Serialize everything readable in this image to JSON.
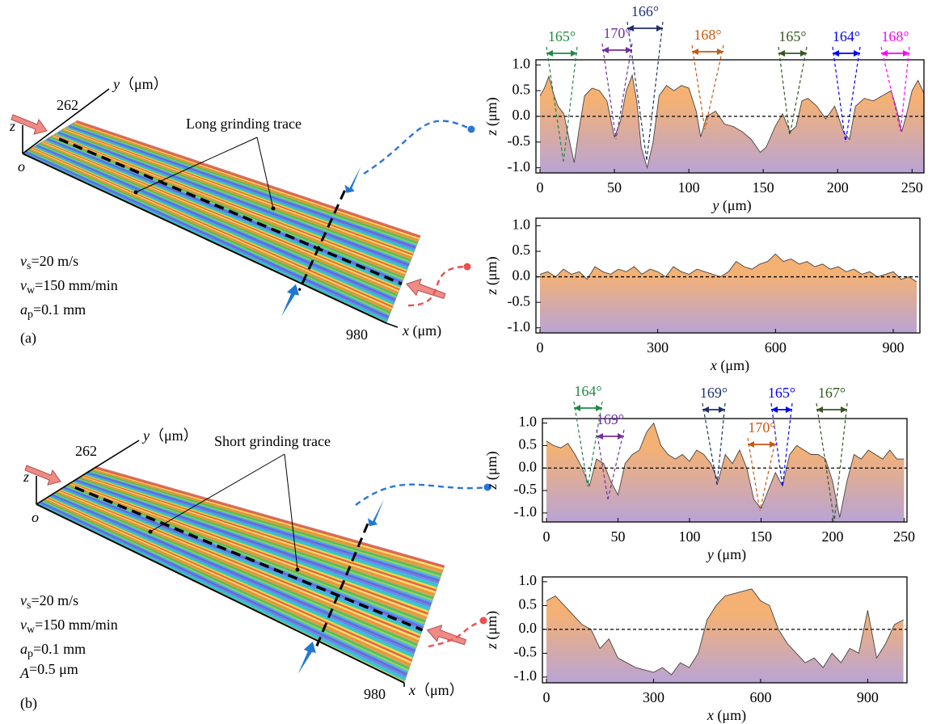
{
  "chart_data": [
    {
      "type": "area",
      "xlabel": {
        "var": "y",
        "unit": " (μm)"
      },
      "ylabel": {
        "var": "z",
        "unit": " (μm)"
      },
      "x": [
        0,
        3,
        6,
        9,
        12,
        16,
        20,
        23,
        26,
        30,
        35,
        40,
        45,
        50,
        54,
        58,
        62,
        65,
        68,
        72,
        76,
        80,
        85,
        90,
        95,
        100,
        105,
        108,
        112,
        118,
        124,
        130,
        136,
        142,
        148,
        152,
        158,
        163,
        168,
        172,
        176,
        180,
        186,
        192,
        198,
        204,
        208,
        212,
        218,
        224,
        230,
        236,
        240,
        243,
        246,
        250,
        254,
        258
      ],
      "values": [
        0.4,
        0.55,
        0.78,
        0.45,
        0.2,
        0.05,
        -0.5,
        -0.9,
        -0.3,
        0.4,
        0.55,
        0.5,
        0.3,
        -0.4,
        -0.1,
        0.5,
        0.8,
        0.3,
        -0.6,
        -1.0,
        -0.5,
        0.4,
        0.6,
        0.5,
        0.6,
        0.55,
        0.1,
        -0.4,
        0.0,
        0.1,
        -0.15,
        -0.2,
        -0.3,
        -0.45,
        -0.7,
        -0.6,
        -0.2,
        0.05,
        -0.3,
        -0.2,
        0.3,
        0.35,
        0.2,
        -0.05,
        0.2,
        -0.3,
        -0.45,
        0.2,
        0.35,
        0.3,
        0.4,
        0.5,
        0.1,
        -0.3,
        0.0,
        0.5,
        0.7,
        0.45
      ],
      "xlim": [
        0,
        258
      ],
      "xticks": [
        0,
        50,
        100,
        150,
        200,
        250
      ],
      "ylim": [
        -1.1,
        1.1
      ],
      "yticks": [
        {
          "value": -1,
          "label": "-1.0"
        },
        {
          "value": -0.5,
          "label": "-0.5"
        },
        {
          "value": 0,
          "label": "0.0"
        },
        {
          "value": 0.5,
          "label": "0.5"
        },
        {
          "value": 1,
          "label": "1.0"
        }
      ],
      "hline": 0,
      "line_color": "#444444",
      "fill_colors": [
        "#f4b173",
        "#b9a4d6"
      ],
      "annotations": [
        {
          "text": "165°",
          "color": "#1e8a46"
        },
        {
          "text": "170°",
          "color": "#7030a0"
        },
        {
          "text": "166°",
          "color": "#1f2f6e"
        },
        {
          "text": "168°",
          "color": "#c55a11"
        },
        {
          "text": "165°",
          "color": "#375623"
        },
        {
          "text": "164°",
          "color": "#0000ff"
        },
        {
          "text": "168°",
          "color": "#ff00ff"
        }
      ]
    },
    {
      "type": "area",
      "xlabel": {
        "var": "x",
        "unit": " (μm)"
      },
      "ylabel": {
        "var": "z",
        "unit": " (μm)"
      },
      "x": [
        0,
        20,
        40,
        60,
        80,
        100,
        120,
        140,
        160,
        180,
        200,
        220,
        240,
        260,
        280,
        300,
        320,
        340,
        360,
        380,
        400,
        420,
        440,
        460,
        480,
        500,
        520,
        540,
        560,
        580,
        600,
        620,
        640,
        660,
        680,
        700,
        720,
        740,
        760,
        780,
        800,
        820,
        840,
        860,
        880,
        900,
        920,
        940,
        960
      ],
      "values": [
        0.05,
        0.1,
        0.0,
        0.15,
        0.05,
        0.1,
        -0.05,
        0.2,
        0.1,
        0.05,
        0.15,
        0.1,
        0.2,
        0.05,
        0.15,
        0.1,
        0.0,
        0.2,
        0.1,
        0.05,
        0.15,
        0.1,
        0.05,
        0.0,
        0.1,
        0.3,
        0.2,
        0.15,
        0.25,
        0.3,
        0.45,
        0.3,
        0.35,
        0.25,
        0.3,
        0.2,
        0.25,
        0.15,
        0.2,
        0.1,
        0.15,
        0.05,
        0.1,
        0.0,
        0.05,
        0.1,
        -0.05,
        0.0,
        -0.1
      ],
      "xlim": [
        0,
        968
      ],
      "xticks": [
        0,
        300,
        600,
        900
      ],
      "ylim": [
        -1.1,
        1.15
      ],
      "yticks": [
        {
          "value": -1,
          "label": "-1.0"
        },
        {
          "value": -0.5,
          "label": "-0.5"
        },
        {
          "value": 0,
          "label": "0.0"
        },
        {
          "value": 0.5,
          "label": "0.5"
        },
        {
          "value": 1,
          "label": "1.0"
        }
      ],
      "hline": 0,
      "line_color": "#444444",
      "fill_colors": [
        "#f4b173",
        "#b9a4d6"
      ],
      "annotations": []
    },
    {
      "type": "area",
      "xlabel": {
        "var": "y",
        "unit": " (μm)"
      },
      "ylabel": {
        "var": "z",
        "unit": " (μm)"
      },
      "x": [
        0,
        5,
        10,
        15,
        20,
        25,
        30,
        35,
        40,
        45,
        50,
        55,
        60,
        65,
        70,
        75,
        80,
        85,
        90,
        95,
        100,
        105,
        110,
        115,
        120,
        125,
        130,
        135,
        140,
        145,
        150,
        155,
        160,
        165,
        170,
        175,
        180,
        185,
        190,
        195,
        200,
        205,
        210,
        215,
        220,
        225,
        230,
        235,
        240,
        245,
        250
      ],
      "values": [
        0.6,
        0.5,
        0.45,
        0.55,
        0.3,
        0.0,
        -0.4,
        0.2,
        0.1,
        -0.3,
        -0.6,
        0.1,
        0.3,
        0.4,
        0.8,
        1.0,
        0.5,
        0.3,
        0.2,
        0.3,
        0.15,
        0.4,
        0.3,
        0.1,
        -0.3,
        0.3,
        0.1,
        0.4,
        0.0,
        -0.7,
        -0.9,
        -0.5,
        -0.1,
        -0.4,
        0.3,
        0.5,
        0.4,
        0.3,
        0.3,
        0.2,
        -0.3,
        -1.1,
        -0.3,
        0.3,
        0.2,
        0.4,
        0.3,
        0.2,
        0.4,
        0.2,
        0.2
      ],
      "xlim": [
        0,
        252
      ],
      "xticks": [
        0,
        50,
        100,
        150,
        200,
        250
      ],
      "ylim": [
        -1.2,
        1.1
      ],
      "yticks": [
        {
          "value": -1,
          "label": "-1.0"
        },
        {
          "value": -0.5,
          "label": "-0.5"
        },
        {
          "value": 0,
          "label": "0.0"
        },
        {
          "value": 0.5,
          "label": "0.5"
        },
        {
          "value": 1,
          "label": "1.0"
        }
      ],
      "hline": 0,
      "line_color": "#444444",
      "fill_colors": [
        "#f4b173",
        "#b9a4d6"
      ],
      "annotations": [
        {
          "text": "164°",
          "color": "#1e8a46"
        },
        {
          "text": "169°",
          "color": "#7030a0"
        },
        {
          "text": "169°",
          "color": "#1f2f6e"
        },
        {
          "text": "165°",
          "color": "#0000ff"
        },
        {
          "text": "167°",
          "color": "#375623"
        },
        {
          "text": "170°",
          "color": "#c55a11"
        }
      ]
    },
    {
      "type": "area",
      "xlabel": {
        "var": "x",
        "unit": " (μm)"
      },
      "ylabel": {
        "var": "z",
        "unit": " (μm)"
      },
      "x": [
        0,
        25,
        50,
        75,
        100,
        125,
        150,
        175,
        200,
        225,
        250,
        275,
        300,
        325,
        350,
        375,
        400,
        425,
        450,
        475,
        500,
        525,
        550,
        575,
        600,
        625,
        650,
        675,
        700,
        725,
        750,
        775,
        800,
        825,
        850,
        875,
        900,
        925,
        950,
        975,
        1000
      ],
      "values": [
        0.6,
        0.7,
        0.5,
        0.3,
        0.1,
        0.0,
        -0.4,
        -0.2,
        -0.6,
        -0.7,
        -0.8,
        -0.85,
        -0.9,
        -0.8,
        -0.95,
        -0.7,
        -0.8,
        -0.5,
        0.2,
        0.5,
        0.7,
        0.75,
        0.8,
        0.85,
        0.6,
        0.5,
        0.0,
        -0.3,
        -0.5,
        -0.7,
        -0.6,
        -0.8,
        -0.5,
        -0.7,
        -0.4,
        -0.5,
        0.4,
        -0.6,
        -0.3,
        0.1,
        0.2
      ],
      "xlim": [
        0,
        1010
      ],
      "xticks": [
        0,
        300,
        600,
        900
      ],
      "ylim": [
        -1.12,
        1.1
      ],
      "yticks": [
        {
          "value": -1,
          "label": "-1.0"
        },
        {
          "value": -0.5,
          "label": "-0.5"
        },
        {
          "value": 0,
          "label": "0.0"
        },
        {
          "value": 0.5,
          "label": "0.5"
        },
        {
          "value": 1,
          "label": "1.0"
        }
      ],
      "hline": 0,
      "line_color": "#444444",
      "fill_colors": [
        "#f4b173",
        "#b9a4d6"
      ],
      "annotations": []
    }
  ],
  "panels": [
    {
      "label": "(a)",
      "axis_y": {
        "var": "y",
        "unit": "（μm）"
      },
      "y_max": "262",
      "axis_z": "z",
      "origin": "o",
      "axis_x": {
        "var": "x",
        "unit": " (μm)"
      },
      "x_max": "980",
      "trace": "Long grinding trace",
      "params": [
        {
          "sym": "v",
          "sub": "s",
          "rest": "=20 m/s"
        },
        {
          "sym": "v",
          "sub": "w",
          "rest": "=150 mm/min"
        },
        {
          "sym": "a",
          "sub": "p",
          "rest": "=0.1 mm"
        }
      ]
    },
    {
      "label": "(b)",
      "axis_y": {
        "var": "y",
        "unit": "（μm）"
      },
      "y_max": "262",
      "axis_z": "z",
      "origin": "o",
      "axis_x": {
        "var": "x",
        "unit": "（μm）"
      },
      "x_max": "980",
      "trace": "Short grinding trace",
      "params": [
        {
          "sym": "v",
          "sub": "s",
          "rest": "=20 m/s"
        },
        {
          "sym": "v",
          "sub": "w",
          "rest": "=150 mm/min"
        },
        {
          "sym": "a",
          "sub": "p",
          "rest": "=0.1 mm"
        },
        {
          "sym": "A",
          "sub": "",
          "rest": "=0.5 μm"
        }
      ]
    }
  ]
}
